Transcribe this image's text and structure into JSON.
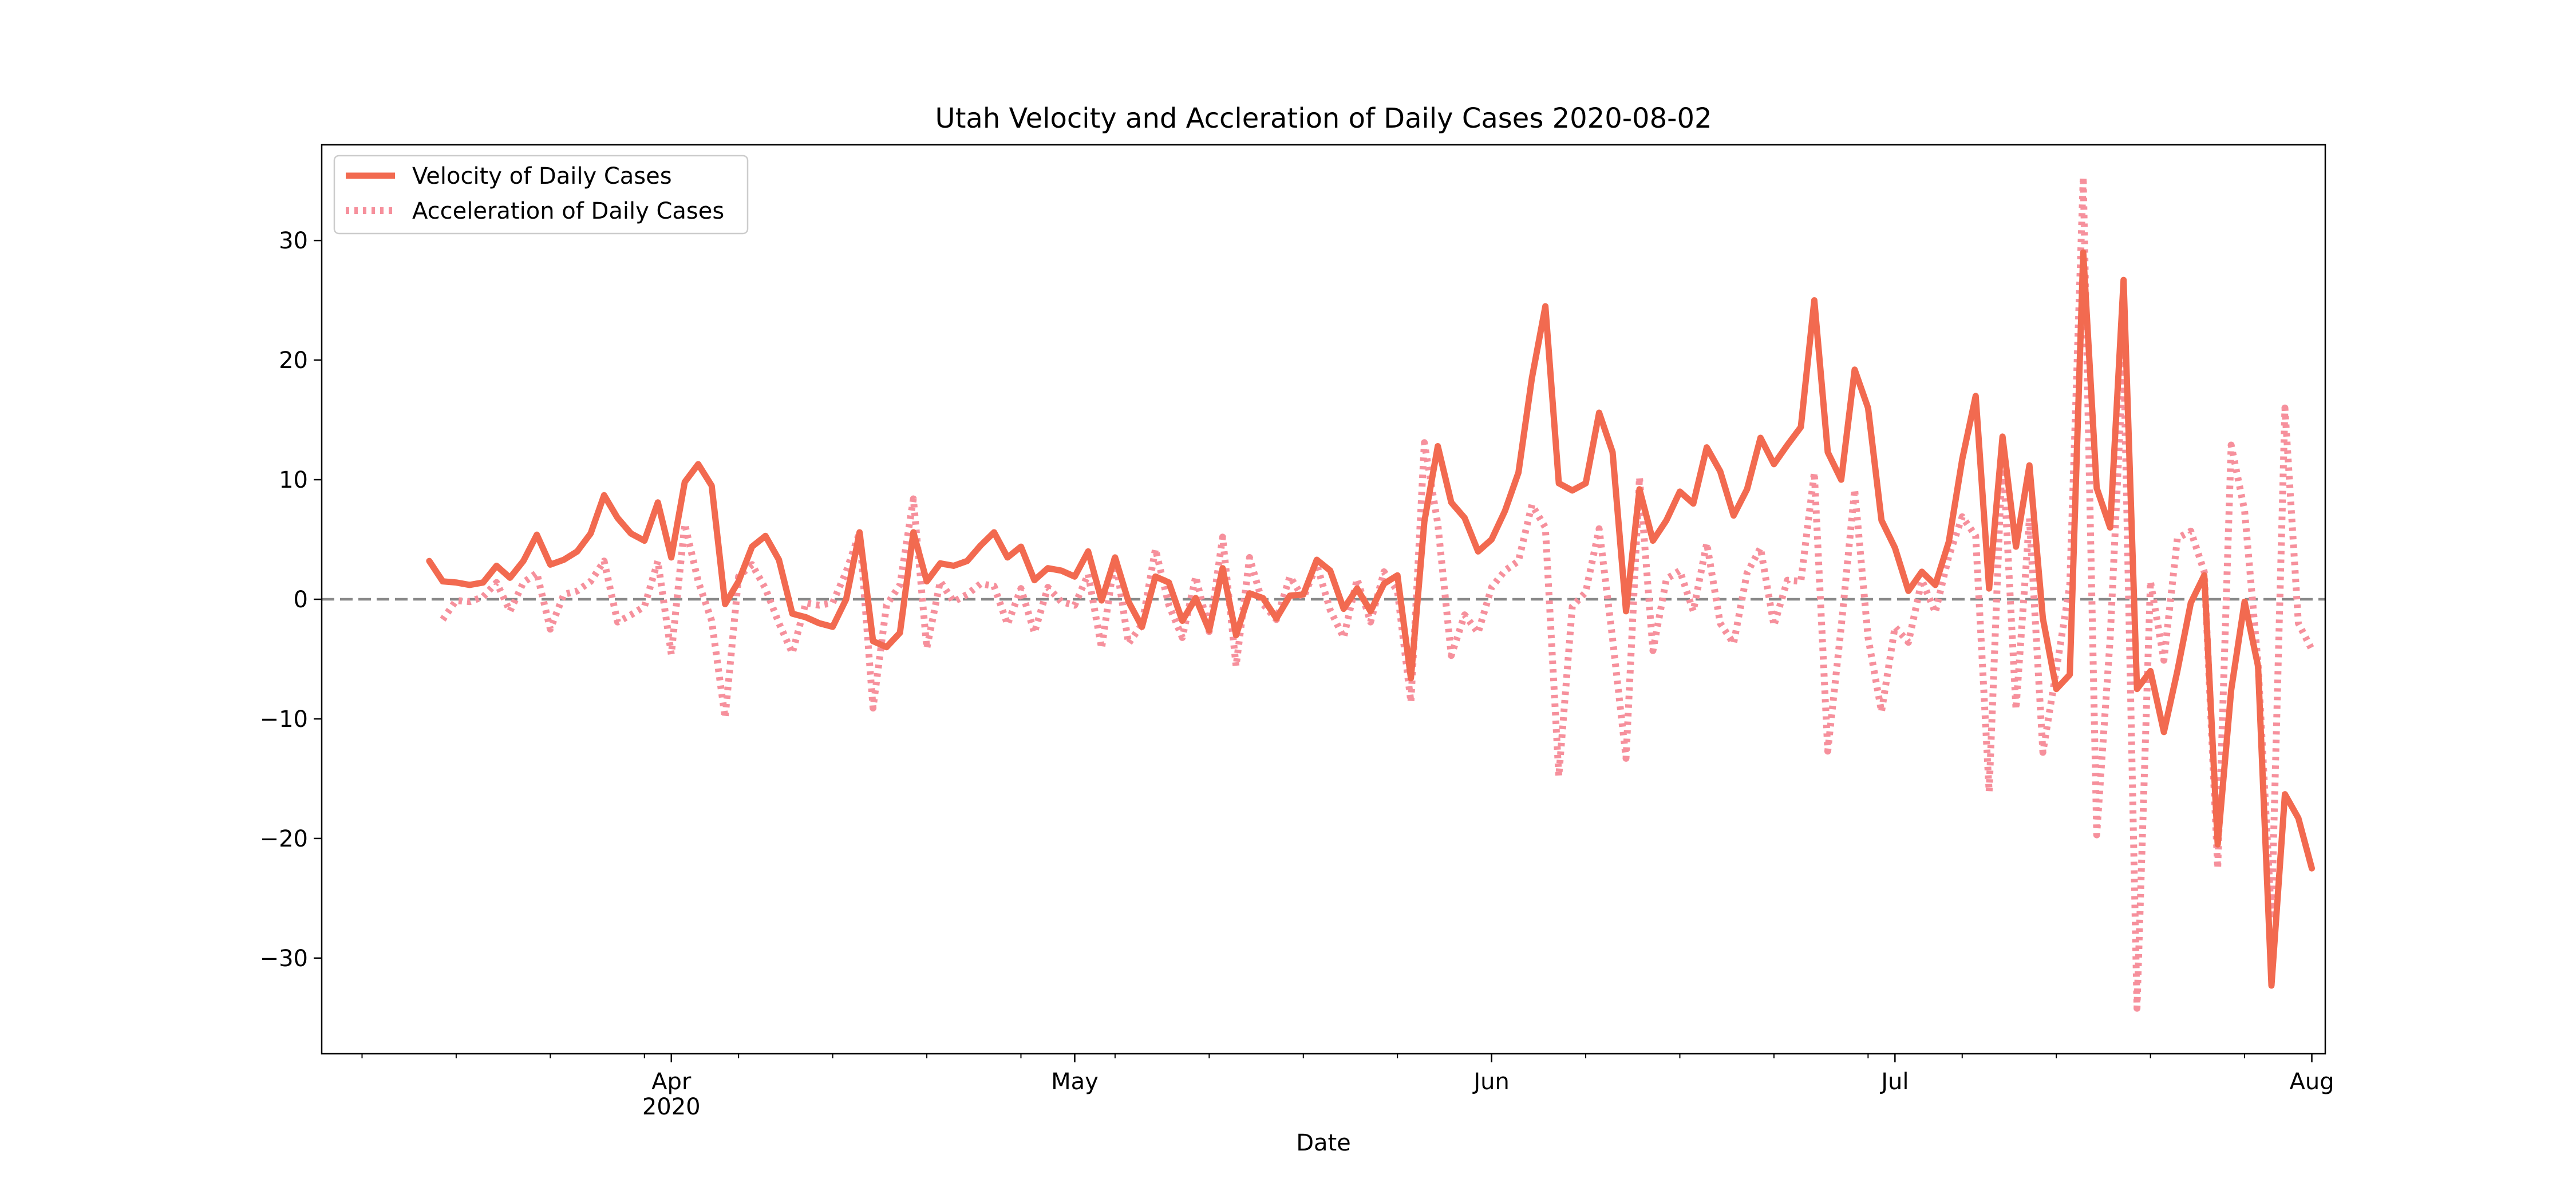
{
  "chart_data": {
    "type": "line",
    "title": "Utah Velocity and Accleration of Daily Cases 2020-08-02",
    "xlabel": "Date",
    "ylabel": "",
    "xlim": [
      "2020-03-06",
      "2020-08-02"
    ],
    "ylim": [
      -38,
      38
    ],
    "x_ticks": [
      {
        "date": "2020-04-01",
        "label": "Apr",
        "sublabel": "2020"
      },
      {
        "date": "2020-05-01",
        "label": "May",
        "sublabel": ""
      },
      {
        "date": "2020-06-01",
        "label": "Jun",
        "sublabel": ""
      },
      {
        "date": "2020-07-01",
        "label": "Jul",
        "sublabel": ""
      },
      {
        "date": "2020-08-01",
        "label": "Aug",
        "sublabel": ""
      }
    ],
    "y_ticks": [
      30,
      20,
      10,
      0,
      -10,
      -20,
      -30
    ],
    "y_tick_labels": [
      "30",
      "20",
      "10",
      "0",
      "−10",
      "−20",
      "−30"
    ],
    "zero_line": {
      "y": 0,
      "style": "dashed",
      "color": "#888888"
    },
    "grid": false,
    "legend_placement": "top-left",
    "x_start": "2020-03-14",
    "series": [
      {
        "name": "Velocity of Daily Cases",
        "color": "#f26a50",
        "style": "solid",
        "values": [
          3.2,
          1.5,
          1.4,
          1.2,
          1.4,
          2.8,
          1.8,
          3.2,
          5.4,
          2.9,
          3.3,
          4.0,
          5.5,
          8.7,
          6.8,
          5.5,
          4.9,
          8.1,
          3.5,
          9.8,
          11.3,
          9.5,
          -0.4,
          1.5,
          4.4,
          5.3,
          3.3,
          -1.2,
          -1.5,
          -2.0,
          -2.3,
          0.0,
          5.6,
          -3.5,
          -4.0,
          -2.8,
          5.6,
          1.5,
          3.0,
          2.8,
          3.2,
          4.5,
          5.6,
          3.5,
          4.4,
          1.6,
          2.6,
          2.4,
          1.9,
          4.0,
          -0.1,
          3.5,
          -0.2,
          -2.3,
          1.9,
          1.4,
          -1.8,
          0.1,
          -2.6,
          2.6,
          -3.0,
          0.5,
          0.1,
          -1.6,
          0.3,
          0.4,
          3.3,
          2.4,
          -0.8,
          0.9,
          -1.0,
          1.3,
          2.0,
          -6.6,
          6.5,
          12.8,
          8.1,
          6.8,
          4.0,
          5.0,
          7.4,
          10.6,
          18.5,
          24.5,
          9.7,
          9.1,
          9.7,
          15.6,
          12.3,
          -1.0,
          9.2,
          4.9,
          6.6,
          9.0,
          8.0,
          12.7,
          10.7,
          7.0,
          9.2,
          13.5,
          11.3,
          12.9,
          14.4,
          25.0,
          12.3,
          10.0,
          19.2,
          16.0,
          6.6,
          4.3,
          0.7,
          2.3,
          1.2,
          4.8,
          11.7,
          17.0,
          0.9,
          13.6,
          4.4,
          11.2,
          -1.6,
          -7.5,
          -6.3,
          29.0,
          9.3,
          6.0,
          26.7,
          -7.5,
          -6.0,
          -11.1,
          -6.0,
          -0.3,
          2.0,
          -20.5,
          -7.6,
          -0.2,
          -5.6,
          -32.3,
          -16.3,
          -18.3,
          -22.5
        ]
      },
      {
        "name": "Acceleration of Daily Cases",
        "color": "#f6909c",
        "style": "dotted",
        "values": [
          null,
          -1.7,
          -0.1,
          -0.2,
          0.2,
          1.4,
          -1.0,
          1.4,
          2.2,
          -2.5,
          0.4,
          0.7,
          1.5,
          3.2,
          -1.9,
          -1.3,
          -0.6,
          3.2,
          -4.6,
          6.3,
          1.5,
          -1.8,
          -9.9,
          1.9,
          2.9,
          0.9,
          -2.0,
          -4.5,
          -0.3,
          -0.5,
          -0.3,
          2.3,
          5.6,
          -9.1,
          -0.5,
          1.2,
          8.4,
          -4.1,
          1.5,
          -0.2,
          0.4,
          1.3,
          1.1,
          -2.1,
          0.9,
          -2.8,
          1.0,
          -0.2,
          -0.5,
          2.1,
          -4.1,
          3.6,
          -3.7,
          -2.1,
          4.2,
          -0.5,
          -3.2,
          1.9,
          -2.7,
          5.2,
          -5.6,
          3.5,
          -0.4,
          -1.7,
          1.9,
          0.1,
          2.9,
          -0.9,
          -3.2,
          1.7,
          -1.9,
          2.3,
          0.7,
          -8.6,
          13.1,
          6.3,
          -4.7,
          -1.3,
          -2.8,
          1.0,
          2.4,
          3.2,
          7.9,
          6.0,
          -14.8,
          -0.6,
          0.6,
          5.9,
          -3.3,
          -13.3,
          10.2,
          -4.3,
          1.7,
          2.4,
          -1.0,
          4.7,
          -2.0,
          -3.7,
          2.2,
          4.3,
          -2.2,
          1.6,
          1.5,
          10.6,
          -12.7,
          -2.3,
          9.2,
          -3.2,
          -9.4,
          -2.3,
          -3.6,
          1.6,
          -1.1,
          3.6,
          6.9,
          5.3,
          -16.1,
          12.7,
          -9.2,
          6.8,
          -12.8,
          -5.9,
          1.2,
          35.3,
          -19.7,
          -3.3,
          20.7,
          -34.2,
          1.5,
          -5.1,
          5.1,
          5.7,
          2.3,
          -22.5,
          12.9,
          7.4,
          -5.4,
          -26.7,
          16.0,
          -2.0,
          -4.2
        ]
      }
    ]
  }
}
